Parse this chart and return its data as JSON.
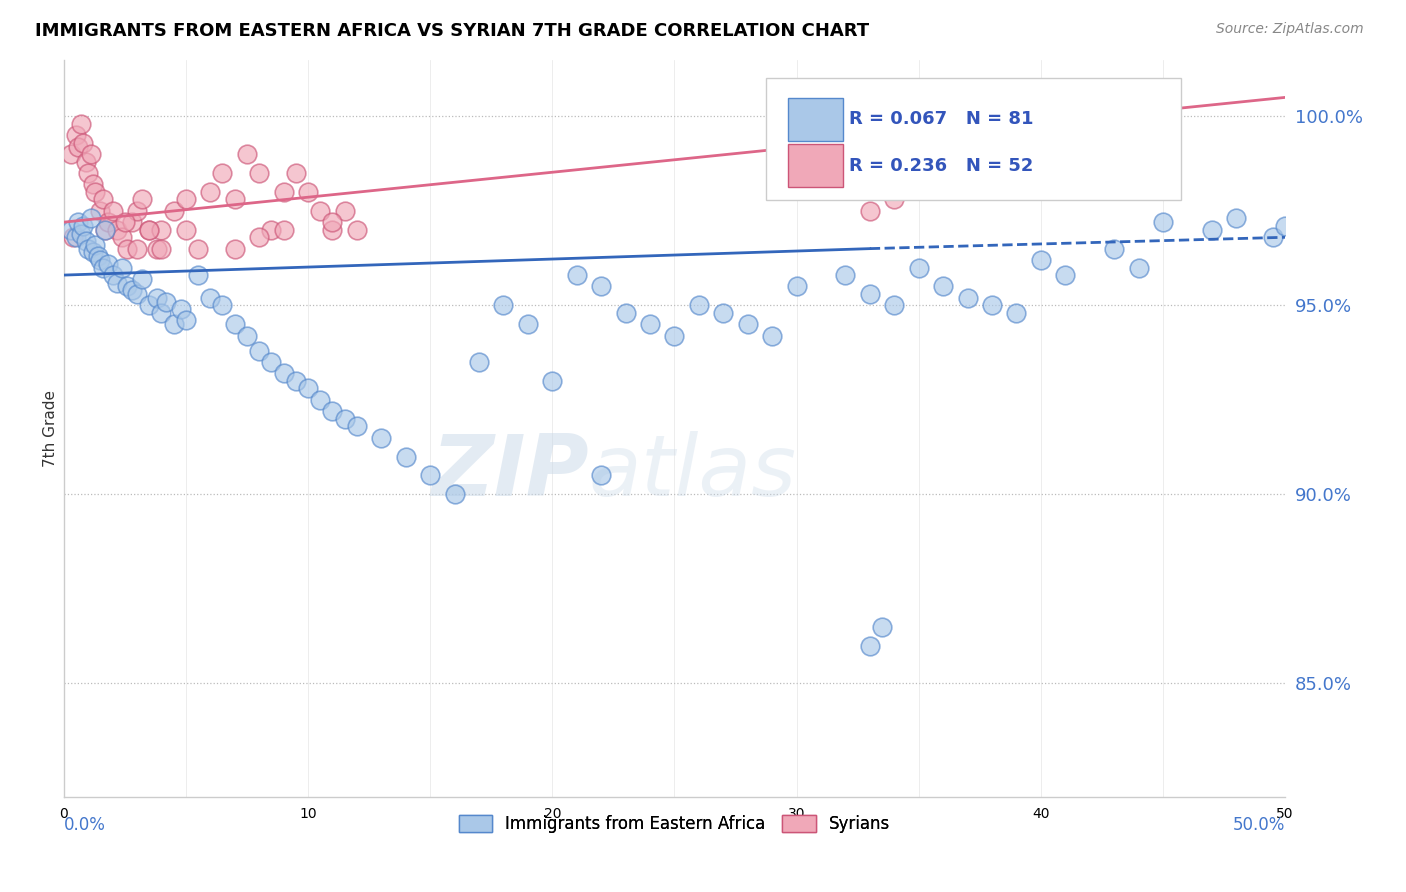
{
  "title": "IMMIGRANTS FROM EASTERN AFRICA VS SYRIAN 7TH GRADE CORRELATION CHART",
  "source": "Source: ZipAtlas.com",
  "ylabel": "7th Grade",
  "xlim": [
    0.0,
    50.0
  ],
  "ylim": [
    82.0,
    101.5
  ],
  "yticks": [
    85.0,
    90.0,
    95.0,
    100.0
  ],
  "ytick_labels": [
    "85.0%",
    "90.0%",
    "95.0%",
    "100.0%"
  ],
  "legend_blue": "R = 0.067   N = 81",
  "legend_pink": "R = 0.236   N = 52",
  "blue_fill": "#aac8e8",
  "blue_edge": "#5588cc",
  "pink_fill": "#f0a8b8",
  "pink_edge": "#cc5577",
  "trendline_blue": "#3366bb",
  "trendline_pink": "#dd6688",
  "blue_scatter_x": [
    0.3,
    0.5,
    0.6,
    0.7,
    0.8,
    0.9,
    1.0,
    1.1,
    1.2,
    1.3,
    1.4,
    1.5,
    1.6,
    1.7,
    1.8,
    2.0,
    2.2,
    2.4,
    2.6,
    2.8,
    3.0,
    3.2,
    3.5,
    3.8,
    4.0,
    4.2,
    4.5,
    4.8,
    5.0,
    5.5,
    6.0,
    6.5,
    7.0,
    7.5,
    8.0,
    8.5,
    9.0,
    9.5,
    10.0,
    10.5,
    11.0,
    11.5,
    12.0,
    13.0,
    14.0,
    15.0,
    16.0,
    17.0,
    18.0,
    19.0,
    20.0,
    21.0,
    22.0,
    23.0,
    24.0,
    25.0,
    26.0,
    27.0,
    28.0,
    29.0,
    30.0,
    32.0,
    33.0,
    34.0,
    35.0,
    36.0,
    37.0,
    38.0,
    39.0,
    40.0,
    41.0,
    43.0,
    44.0,
    45.0,
    47.0,
    48.0,
    49.5,
    50.0,
    22.0,
    33.0,
    33.5
  ],
  "blue_scatter_y": [
    97.0,
    96.8,
    97.2,
    96.9,
    97.1,
    96.7,
    96.5,
    97.3,
    96.4,
    96.6,
    96.3,
    96.2,
    96.0,
    97.0,
    96.1,
    95.8,
    95.6,
    96.0,
    95.5,
    95.4,
    95.3,
    95.7,
    95.0,
    95.2,
    94.8,
    95.1,
    94.5,
    94.9,
    94.6,
    95.8,
    95.2,
    95.0,
    94.5,
    94.2,
    93.8,
    93.5,
    93.2,
    93.0,
    92.8,
    92.5,
    92.2,
    92.0,
    91.8,
    91.5,
    91.0,
    90.5,
    90.0,
    93.5,
    95.0,
    94.5,
    93.0,
    95.8,
    95.5,
    94.8,
    94.5,
    94.2,
    95.0,
    94.8,
    94.5,
    94.2,
    95.5,
    95.8,
    95.3,
    95.0,
    96.0,
    95.5,
    95.2,
    95.0,
    94.8,
    96.2,
    95.8,
    96.5,
    96.0,
    97.2,
    97.0,
    97.3,
    96.8,
    97.1,
    90.5,
    86.0,
    86.5
  ],
  "pink_scatter_x": [
    0.3,
    0.5,
    0.6,
    0.7,
    0.8,
    0.9,
    1.0,
    1.1,
    1.2,
    1.3,
    1.5,
    1.6,
    1.7,
    1.8,
    2.0,
    2.2,
    2.4,
    2.6,
    2.8,
    3.0,
    3.2,
    3.5,
    3.8,
    4.0,
    4.5,
    5.0,
    5.5,
    6.0,
    6.5,
    7.0,
    7.5,
    8.0,
    8.5,
    9.0,
    9.5,
    10.0,
    10.5,
    11.0,
    11.5,
    12.0,
    2.5,
    3.0,
    3.5,
    4.0,
    5.0,
    7.0,
    8.0,
    9.0,
    11.0,
    33.0,
    34.0,
    0.4
  ],
  "pink_scatter_y": [
    99.0,
    99.5,
    99.2,
    99.8,
    99.3,
    98.8,
    98.5,
    99.0,
    98.2,
    98.0,
    97.5,
    97.8,
    97.0,
    97.2,
    97.5,
    97.0,
    96.8,
    96.5,
    97.2,
    97.5,
    97.8,
    97.0,
    96.5,
    97.0,
    97.5,
    97.0,
    96.5,
    98.0,
    98.5,
    97.8,
    99.0,
    98.5,
    97.0,
    98.0,
    98.5,
    98.0,
    97.5,
    97.0,
    97.5,
    97.0,
    97.2,
    96.5,
    97.0,
    96.5,
    97.8,
    96.5,
    96.8,
    97.0,
    97.2,
    97.5,
    97.8,
    96.8
  ],
  "trendblue_x0": 0.0,
  "trendblue_x1": 33.0,
  "trendblue_y0": 95.8,
  "trendblue_y1": 96.5,
  "trendblue_dash_x0": 33.0,
  "trendblue_dash_x1": 50.0,
  "trendblue_dash_y0": 96.5,
  "trendblue_dash_y1": 96.8,
  "trendpink_x0": 0.0,
  "trendpink_x1": 50.0,
  "trendpink_y0": 97.2,
  "trendpink_y1": 100.5
}
